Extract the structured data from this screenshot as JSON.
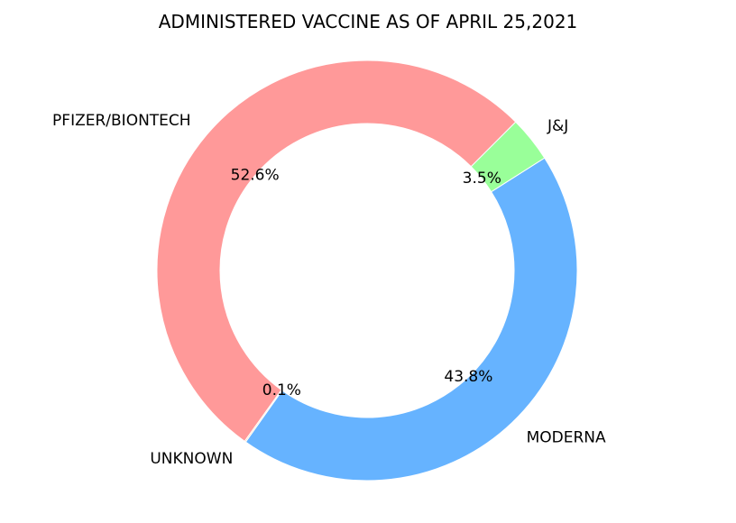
{
  "chart_data": {
    "type": "pie",
    "title": "ADMINISTERED VACCINE AS OF APRIL 25,2021",
    "slices": [
      {
        "label": "PFIZER/BIONTECH",
        "value": 52.6,
        "pct_label": "52.6%",
        "color": "#ff9999"
      },
      {
        "label": "UNKNOWN",
        "value": 0.1,
        "pct_label": "0.1%",
        "color": "#ffcc99"
      },
      {
        "label": "MODERNA",
        "value": 43.8,
        "pct_label": "43.8%",
        "color": "#66b3ff"
      },
      {
        "label": "J&J",
        "value": 3.5,
        "pct_label": "3.5%",
        "color": "#99ff99"
      }
    ],
    "start_angle_deg": 45,
    "direction": "counterclockwise",
    "donut": true
  }
}
